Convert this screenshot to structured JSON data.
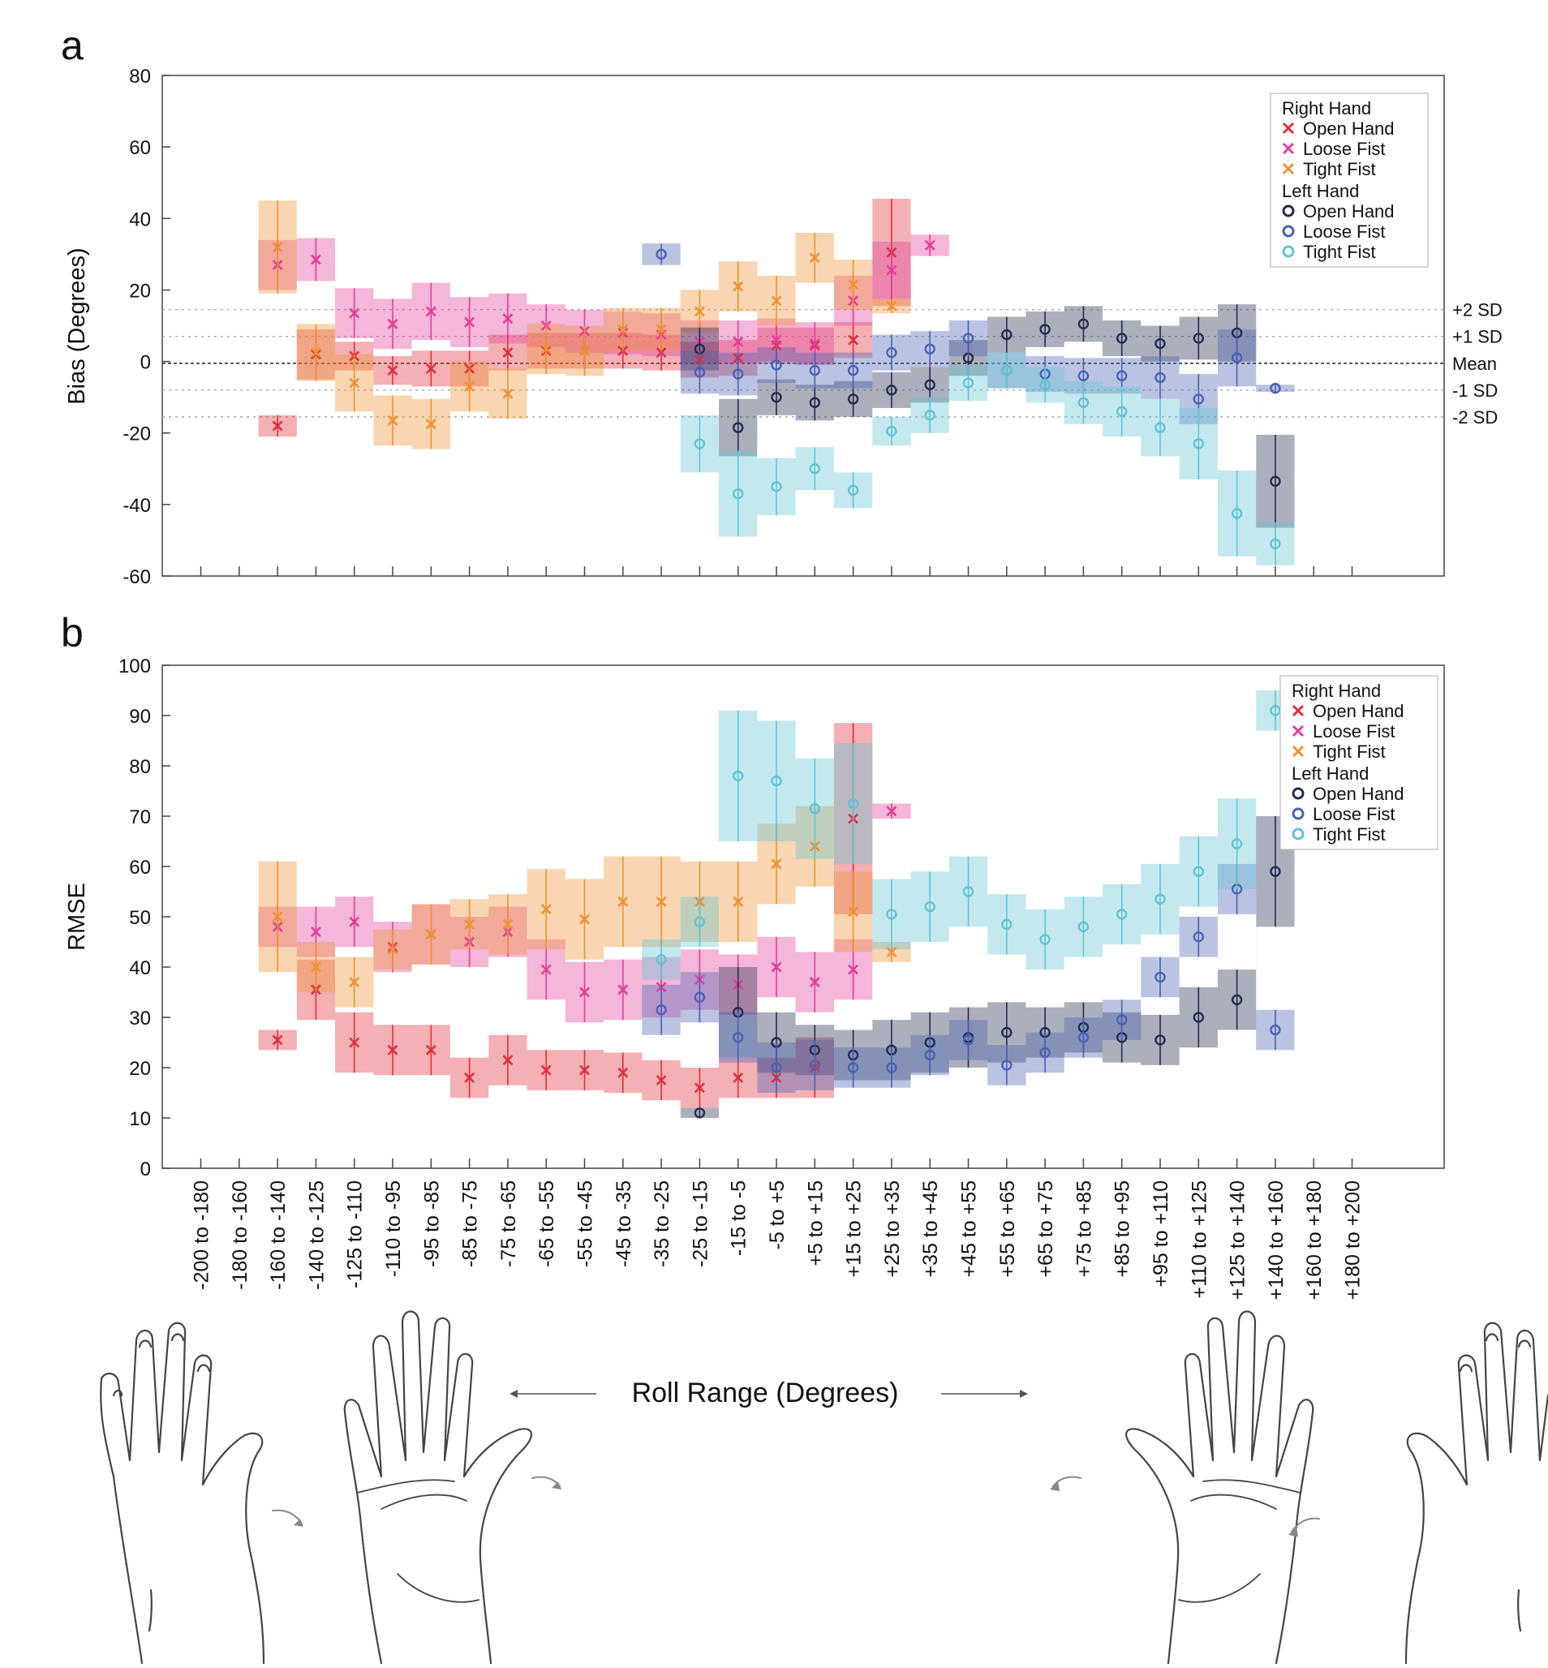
{
  "colors": {
    "right_open": "#e0303c",
    "right_loose": "#e23e9a",
    "right_tight": "#ee9233",
    "left_open": "#242c4e",
    "left_loose": "#4a62b4",
    "left_tight": "#60c4d4",
    "axis": "#222222",
    "sd_line": "#aaaaaa"
  },
  "categories": [
    "-200 to -180",
    "-180 to -160",
    "-160 to -140",
    "-140 to -125",
    "-125 to -110",
    "-110 to -95",
    "-95 to -85",
    "-85 to -75",
    "-75 to -65",
    "-65 to -55",
    "-55 to -45",
    "-45 to -35",
    "-35 to -25",
    "-25 to -15",
    "-15 to -5",
    "-5 to +5",
    "+5 to +15",
    "+15 to +25",
    "+25 to +35",
    "+35 to +45",
    "+45 to +55",
    "+55 to +65",
    "+65 to +75",
    "+75 to +85",
    "+85 to +95",
    "+95 to +110",
    "+110 to +125",
    "+125 to +140",
    "+140 to +160",
    "+160 to +180",
    "+180 to +200"
  ],
  "xlabel": "Roll Range (Degrees)",
  "legend": {
    "right_title": "Right Hand",
    "left_title": "Left Hand",
    "entries": [
      "Open Hand",
      "Loose Fist",
      "Tight Fist"
    ]
  },
  "chart_data": [
    {
      "panel": "a",
      "type": "line",
      "ylabel": "Bias (Degrees)",
      "ylim": [
        -60,
        80
      ],
      "yticks": [
        "80",
        "60",
        "40",
        "20",
        "0",
        "-20",
        "-40",
        "-60"
      ],
      "reference_lines": [
        {
          "label": "+2 SD",
          "value": 14.5
        },
        {
          "label": "+1 SD",
          "value": 7
        },
        {
          "label": "Mean",
          "value": -0.5
        },
        {
          "label": "-1 SD",
          "value": -8
        },
        {
          "label": "-2 SD",
          "value": -15.5
        }
      ],
      "series": [
        {
          "hand": "right",
          "grip": "Open Hand",
          "start": 2,
          "values": [
            -18,
            2,
            1.5,
            -2.5,
            -2,
            -2,
            2.5,
            3,
            3,
            3,
            2.5,
            0.5,
            1,
            4.5,
            4.5,
            6,
            30.5
          ],
          "band": [
            3,
            7,
            4,
            4,
            5,
            5,
            5,
            5,
            5,
            5,
            5,
            5,
            5,
            5,
            5,
            5,
            15
          ]
        },
        {
          "hand": "right",
          "grip": "Loose Fist",
          "start": 2,
          "values": [
            27,
            28.5,
            13.5,
            10.5,
            14,
            11,
            12,
            10,
            8.5,
            8,
            7.5,
            5.5,
            5.5,
            6,
            5,
            17,
            25.5,
            32.5
          ],
          "band": [
            7,
            6,
            7,
            7,
            8,
            7,
            7,
            6,
            6,
            6,
            6,
            6,
            6,
            6,
            6,
            7,
            8,
            3
          ]
        },
        {
          "hand": "right",
          "grip": "Tight Fist",
          "start": 2,
          "values": [
            32,
            2.5,
            -6,
            -16.5,
            -17.5,
            -7,
            -9,
            3.5,
            3,
            9,
            9,
            14,
            21,
            17,
            29,
            21.5,
            15.5
          ],
          "band": [
            13,
            8,
            8,
            7,
            7,
            7,
            7,
            7,
            7,
            6,
            6,
            6,
            7,
            7,
            7,
            7,
            2
          ]
        },
        {
          "hand": "left",
          "grip": "Open Hand",
          "start": 13,
          "values": [
            3.5,
            -18.5,
            -10,
            -11.5,
            -10.5,
            -8,
            -6.5,
            1,
            7.5,
            9,
            10.5,
            6.5,
            5,
            6.5,
            8,
            -33.5
          ],
          "band": [
            6,
            8,
            5,
            5,
            5,
            5,
            5,
            5,
            5,
            5,
            5,
            5,
            5,
            6,
            8,
            13
          ]
        },
        {
          "hand": "left",
          "grip": "Loose Fist",
          "start": 12,
          "values": [
            30,
            -3,
            -3.5,
            -1,
            -2.5,
            -2.5,
            2.5,
            3.5,
            6.5,
            -2.5,
            -3.5,
            -4,
            -4,
            -4.5,
            -10.5,
            1,
            -7.5
          ],
          "band": [
            3,
            6,
            6,
            5,
            5,
            5,
            5,
            5,
            5,
            5,
            5,
            5,
            5,
            6,
            7,
            8,
            1
          ]
        },
        {
          "hand": "left",
          "grip": "Tight Fist",
          "start": 13,
          "values": [
            -23,
            -37,
            -35,
            -30,
            -36,
            -19.5,
            -15,
            -6,
            -2.5,
            -6.5,
            -11.5,
            -14,
            -18.5,
            -23,
            -42.5,
            -51
          ],
          "band": [
            8,
            12,
            8,
            6,
            5,
            4,
            5,
            5,
            5,
            5,
            6,
            7,
            8,
            10,
            12,
            6
          ]
        }
      ]
    },
    {
      "panel": "b",
      "type": "line",
      "ylabel": "RMSE",
      "ylim": [
        0,
        100
      ],
      "yticks": [
        "100",
        "90",
        "80",
        "70",
        "60",
        "50",
        "40",
        "30",
        "20",
        "10",
        "0"
      ],
      "series": [
        {
          "hand": "right",
          "grip": "Open Hand",
          "start": 2,
          "values": [
            25.5,
            35.5,
            25,
            23.5,
            23.5,
            18,
            21.5,
            19.5,
            19.5,
            19,
            17.5,
            16,
            18,
            18,
            20,
            69.5
          ],
          "band": [
            2,
            6,
            6,
            5,
            5,
            4,
            5,
            4,
            4,
            4,
            4,
            4,
            4,
            4,
            6,
            19
          ]
        },
        {
          "hand": "right",
          "grip": "Loose Fist",
          "start": 2,
          "values": [
            48,
            47,
            49,
            44,
            46.5,
            45,
            47,
            39.5,
            35,
            35.5,
            36,
            37.5,
            36.5,
            40,
            37,
            39.5,
            71
          ],
          "band": [
            4,
            5,
            5,
            5,
            6,
            5,
            5,
            6,
            6,
            6,
            6,
            6,
            6,
            6,
            6,
            6,
            1.5
          ]
        },
        {
          "hand": "right",
          "grip": "Tight Fist",
          "start": 2,
          "values": [
            50,
            40,
            37,
            43.5,
            46.5,
            48.5,
            48.5,
            51.5,
            49.5,
            53,
            53,
            53,
            53,
            60.5,
            64,
            51,
            43
          ],
          "band": [
            11,
            5,
            5,
            4,
            6,
            5,
            6,
            8,
            8,
            9,
            9,
            8,
            8,
            8,
            8,
            8,
            2
          ]
        },
        {
          "hand": "left",
          "grip": "Open Hand",
          "start": 13,
          "values": [
            11,
            31,
            25,
            23.5,
            22.5,
            23.5,
            25,
            26,
            27,
            27,
            28,
            26,
            25.5,
            30,
            33.5,
            59
          ],
          "band": [
            1,
            9,
            6,
            5,
            5,
            6,
            6,
            6,
            6,
            5,
            5,
            5,
            5,
            6,
            6,
            11
          ]
        },
        {
          "hand": "left",
          "grip": "Loose Fist",
          "start": 12,
          "values": [
            31.5,
            34,
            26,
            20,
            20.5,
            20,
            20,
            22.5,
            25.5,
            20.5,
            23,
            26,
            29.5,
            38,
            46,
            55.5,
            27.5
          ],
          "band": [
            5,
            5,
            5,
            5,
            5,
            4,
            4,
            4,
            4,
            4,
            4,
            4,
            4,
            4,
            4,
            5,
            4
          ]
        },
        {
          "hand": "left",
          "grip": "Tight Fist",
          "start": 12,
          "values": [
            41.5,
            49,
            78,
            77,
            71.5,
            72.5,
            50.5,
            52,
            55,
            48.5,
            45.5,
            48,
            50.5,
            53.5,
            59,
            64.5,
            91
          ],
          "band": [
            4,
            5,
            13,
            12,
            10,
            12,
            7,
            7,
            7,
            6,
            6,
            6,
            6,
            7,
            7,
            9,
            4
          ]
        }
      ]
    }
  ]
}
